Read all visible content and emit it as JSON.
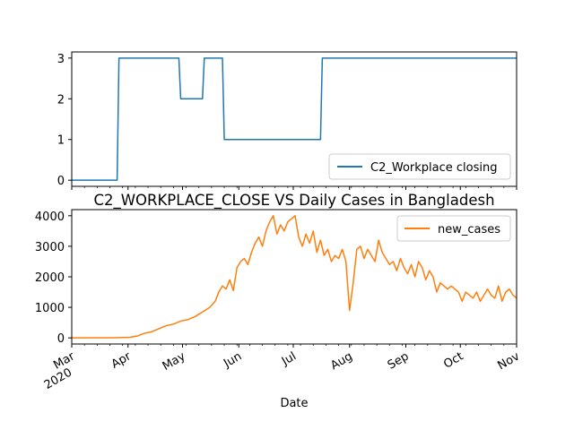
{
  "chart_data": [
    {
      "type": "line",
      "x_start": "2020-03-01",
      "x_end": "2020-11-01",
      "ylim": [
        -0.15,
        3.15
      ],
      "yticks": [
        "0",
        "1",
        "2",
        "3"
      ],
      "xticks_shown": false,
      "legend_loc": "lower right",
      "series": [
        {
          "name": "C2_Workplace closing",
          "color": "#1f77b4",
          "x": [
            "2020-03-01",
            "2020-03-26",
            "2020-03-27",
            "2020-04-29",
            "2020-04-30",
            "2020-05-12",
            "2020-05-13",
            "2020-05-23",
            "2020-05-24",
            "2020-07-16",
            "2020-07-17",
            "2020-11-01"
          ],
          "y": [
            0,
            0,
            3,
            3,
            2,
            2,
            3,
            3,
            1,
            1,
            3,
            3
          ]
        }
      ]
    },
    {
      "type": "line",
      "title": "C2_WORKPLACE_CLOSE VS Daily Cases in Bangladesh",
      "xlabel": "Date",
      "x_start": "2020-03-01",
      "x_end": "2020-11-01",
      "ylim": [
        -200,
        4200
      ],
      "yticks": [
        "0",
        "1000",
        "2000",
        "3000",
        "4000"
      ],
      "xticks": [
        {
          "date": "2020-03-01",
          "label": "Mar",
          "sublabel": "2020"
        },
        {
          "date": "2020-04-01",
          "label": "Apr",
          "sublabel": ""
        },
        {
          "date": "2020-05-01",
          "label": "May",
          "sublabel": ""
        },
        {
          "date": "2020-06-01",
          "label": "Jun",
          "sublabel": ""
        },
        {
          "date": "2020-07-01",
          "label": "Jul",
          "sublabel": ""
        },
        {
          "date": "2020-08-01",
          "label": "Aug",
          "sublabel": ""
        },
        {
          "date": "2020-09-01",
          "label": "Sep",
          "sublabel": ""
        },
        {
          "date": "2020-10-01",
          "label": "Oct",
          "sublabel": ""
        },
        {
          "date": "2020-11-01",
          "label": "Nov",
          "sublabel": ""
        }
      ],
      "legend_loc": "upper right",
      "series": [
        {
          "name": "new_cases",
          "color": "#ff7f0e",
          "x": [
            "2020-03-01",
            "2020-03-25",
            "2020-04-02",
            "2020-04-06",
            "2020-04-10",
            "2020-04-14",
            "2020-04-18",
            "2020-04-22",
            "2020-04-26",
            "2020-04-30",
            "2020-05-04",
            "2020-05-08",
            "2020-05-12",
            "2020-05-16",
            "2020-05-19",
            "2020-05-21",
            "2020-05-23",
            "2020-05-25",
            "2020-05-27",
            "2020-05-29",
            "2020-05-31",
            "2020-06-02",
            "2020-06-04",
            "2020-06-06",
            "2020-06-08",
            "2020-06-10",
            "2020-06-12",
            "2020-06-14",
            "2020-06-16",
            "2020-06-18",
            "2020-06-20",
            "2020-06-22",
            "2020-06-24",
            "2020-06-26",
            "2020-06-28",
            "2020-06-30",
            "2020-07-02",
            "2020-07-04",
            "2020-07-06",
            "2020-07-08",
            "2020-07-10",
            "2020-07-12",
            "2020-07-14",
            "2020-07-16",
            "2020-07-18",
            "2020-07-20",
            "2020-07-22",
            "2020-07-24",
            "2020-07-26",
            "2020-07-28",
            "2020-07-30",
            "2020-08-01",
            "2020-08-03",
            "2020-08-05",
            "2020-08-07",
            "2020-08-09",
            "2020-08-11",
            "2020-08-13",
            "2020-08-15",
            "2020-08-17",
            "2020-08-19",
            "2020-08-21",
            "2020-08-23",
            "2020-08-25",
            "2020-08-27",
            "2020-08-29",
            "2020-08-31",
            "2020-09-02",
            "2020-09-04",
            "2020-09-06",
            "2020-09-08",
            "2020-09-10",
            "2020-09-12",
            "2020-09-14",
            "2020-09-16",
            "2020-09-18",
            "2020-09-20",
            "2020-09-22",
            "2020-09-24",
            "2020-09-26",
            "2020-09-28",
            "2020-09-30",
            "2020-10-02",
            "2020-10-04",
            "2020-10-06",
            "2020-10-08",
            "2020-10-10",
            "2020-10-12",
            "2020-10-14",
            "2020-10-16",
            "2020-10-18",
            "2020-10-20",
            "2020-10-22",
            "2020-10-24",
            "2020-10-26",
            "2020-10-28",
            "2020-10-30",
            "2020-11-01"
          ],
          "y": [
            0,
            5,
            20,
            60,
            150,
            200,
            300,
            400,
            450,
            550,
            600,
            700,
            850,
            1000,
            1200,
            1500,
            1700,
            1600,
            1900,
            1550,
            2300,
            2500,
            2600,
            2400,
            2800,
            3100,
            3300,
            3000,
            3500,
            3800,
            4000,
            3400,
            3700,
            3500,
            3800,
            3900,
            4000,
            3300,
            3000,
            3400,
            3100,
            3500,
            2800,
            3200,
            2700,
            2900,
            2500,
            2700,
            2600,
            2900,
            2500,
            900,
            1800,
            2900,
            3000,
            2600,
            2900,
            2700,
            2500,
            3200,
            2800,
            2600,
            2400,
            2500,
            2200,
            2600,
            2300,
            2100,
            2400,
            2000,
            2500,
            2300,
            1900,
            2200,
            2000,
            1500,
            1800,
            1700,
            1600,
            1700,
            1600,
            1500,
            1200,
            1500,
            1400,
            1300,
            1500,
            1200,
            1400,
            1600,
            1400,
            1300,
            1700,
            1200,
            1500,
            1600,
            1400,
            1300
          ]
        }
      ]
    }
  ]
}
